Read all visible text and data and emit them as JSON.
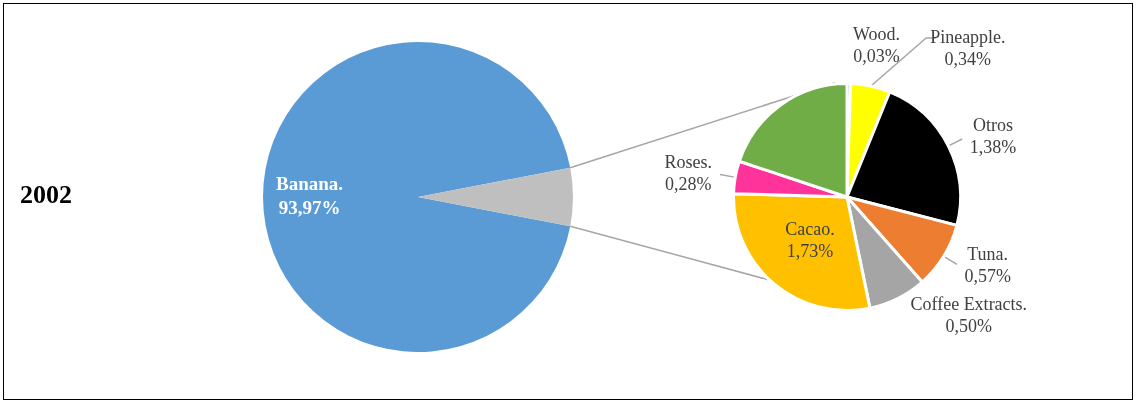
{
  "chart_data": [
    {
      "type": "pie",
      "title": "2002",
      "categories": [
        "Banana.",
        null
      ],
      "values": [
        93.97,
        6.03
      ],
      "colors": [
        "#5b9bd5",
        "#bfbfbf"
      ],
      "value_labels": [
        "93,97%",
        null
      ]
    },
    {
      "type": "pie",
      "categories": [
        "Wood.",
        "Pineapple.",
        "Otros",
        "Tuna.",
        "Coffee Extracts.",
        "Cacao.",
        "Roses.",
        null
      ],
      "values": [
        0.03,
        0.34,
        1.38,
        0.57,
        0.5,
        1.73,
        0.28,
        1.2
      ],
      "colors": [
        "#4472c4",
        "#ffff00",
        "#000000",
        "#ed7d31",
        "#a5a5a5",
        "#ffc000",
        "#ff3399",
        "#70ad47"
      ],
      "value_labels": [
        "0,03%",
        "0,34%",
        "1,38%",
        "0,57%",
        "0,50%",
        "1,73%",
        "0,28%",
        null
      ]
    }
  ]
}
